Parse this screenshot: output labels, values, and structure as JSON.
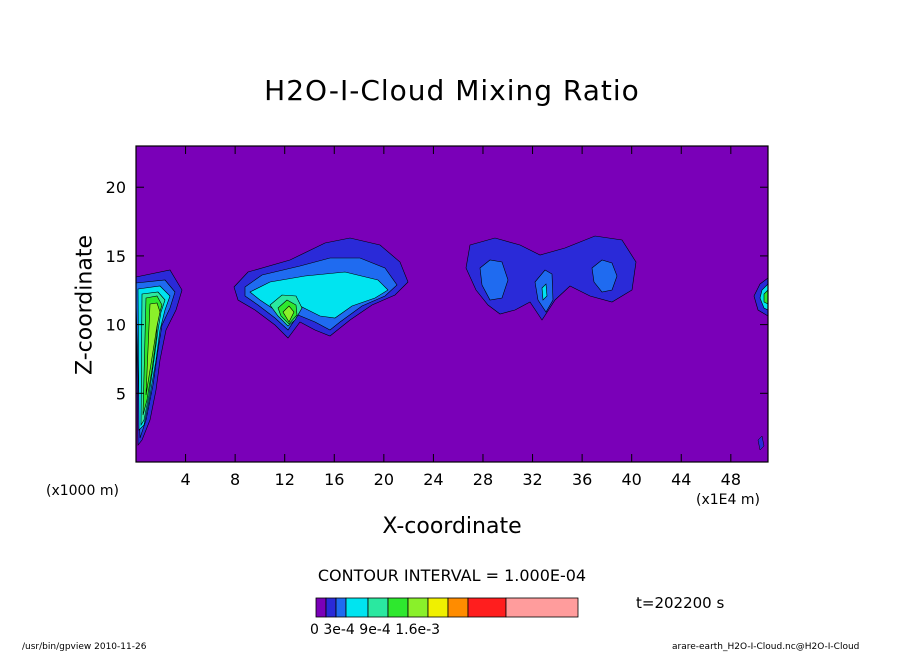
{
  "chart_data": {
    "type": "contour",
    "title": "H2O-I-Cloud Mixing Ratio",
    "xlabel": "X-coordinate",
    "ylabel": "Z-coordinate",
    "x_unit_label": "(x1000 m)",
    "x_unit_label2": "(x1E4 m)",
    "xlim": [
      0,
      51
    ],
    "ylim": [
      0,
      23
    ],
    "x_ticks": [
      4,
      8,
      12,
      16,
      20,
      24,
      28,
      32,
      36,
      40,
      44,
      48
    ],
    "y_ticks": [
      5,
      10,
      15,
      20
    ],
    "contour_interval": "CONTOUR INTERVAL = 1.000E-04",
    "time": "t=202200 s",
    "colorbar": {
      "colors": [
        "#7a00b8",
        "#2a2ad8",
        "#1f6bf0",
        "#00e4f0",
        "#2ae8a0",
        "#2ee82e",
        "#8af02a",
        "#f0f000",
        "#ff8c00",
        "#ff1e1e",
        "#ff9c9c"
      ],
      "tick_labels": "0 3e-4   9e-4   1.6e-3"
    },
    "background_color": "#7a00b8",
    "cloud_features": [
      {
        "name": "left-edge column",
        "x_center": 1.5,
        "z_center": 11.5
      },
      {
        "name": "cloud near x=16",
        "x_center": 15,
        "z_center": 12.5
      },
      {
        "name": "cloud near x=33",
        "x_center": 33,
        "z_center": 13.5
      },
      {
        "name": "right-edge cloud",
        "x_center": 51,
        "z_center": 12
      }
    ]
  },
  "footer": {
    "left": "/usr/bin/gpview   2010-11-26",
    "right": "arare-earth_H2O-I-Cloud.nc@H2O-I-Cloud"
  }
}
